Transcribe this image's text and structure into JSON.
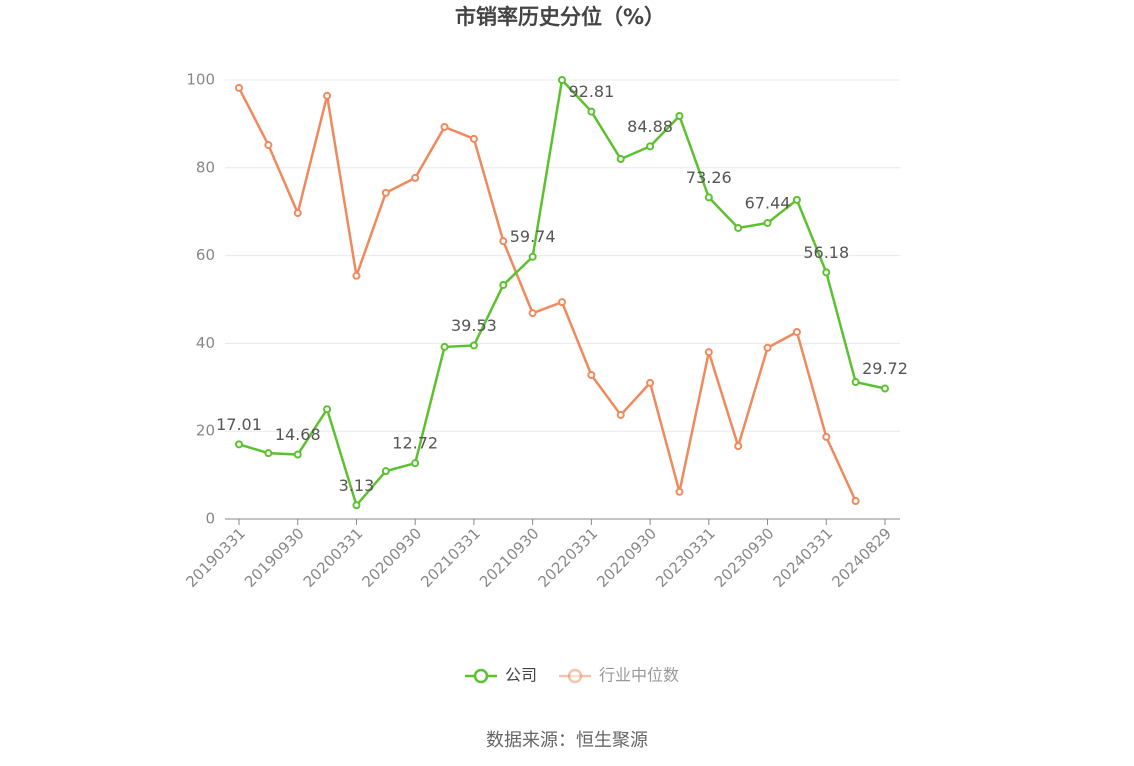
{
  "chart_data": {
    "type": "line",
    "title": "市销率历史分位（%）",
    "categories": [
      "20190331",
      null,
      "20190930",
      null,
      "20200331",
      null,
      "20200930",
      null,
      "20210331",
      null,
      "20210930",
      null,
      "20220331",
      null,
      "20220930",
      null,
      "20230331",
      null,
      "20230930",
      null,
      "20240331",
      null,
      "20240829"
    ],
    "series": [
      {
        "name": "公司",
        "color": "#5cc12e",
        "values": [
          17.01,
          15.0,
          14.68,
          25.0,
          3.13,
          10.9,
          12.72,
          39.2,
          39.53,
          53.3,
          59.74,
          100,
          92.81,
          82.0,
          84.88,
          91.8,
          73.26,
          66.3,
          67.44,
          72.7,
          56.18,
          31.2,
          29.72
        ],
        "value_labels": [
          "17.01",
          null,
          "14.68",
          null,
          "3.13",
          null,
          "12.72",
          null,
          "39.53",
          null,
          "59.74",
          null,
          "92.81",
          null,
          "84.88",
          null,
          "73.26",
          null,
          "67.44",
          null,
          "56.18",
          null,
          "29.72"
        ]
      },
      {
        "name": "行业中位数",
        "color": "#f0895c",
        "values": [
          98.2,
          85.2,
          69.7,
          96.4,
          55.4,
          74.3,
          77.7,
          89.3,
          86.6,
          63.3,
          46.9,
          49.4,
          32.8,
          23.7,
          31.0,
          6.2,
          38.0,
          16.6,
          39.0,
          42.6,
          18.7,
          4.1,
          null
        ]
      }
    ],
    "ylim": [
      0,
      100
    ],
    "yticks": [
      0,
      20,
      40,
      60,
      80,
      100
    ],
    "grid": true,
    "legend": "bottom",
    "source": "数据来源：恒生聚源"
  }
}
